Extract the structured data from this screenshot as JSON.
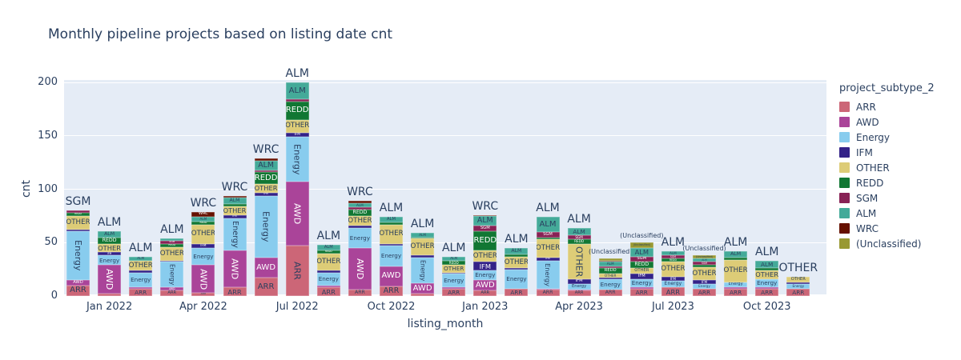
{
  "title": "Monthly pipeline projects based on listing date cnt",
  "axes": {
    "y_title": "cnt",
    "x_title": "listing_month",
    "y_ticks": [
      0,
      50,
      100,
      150,
      200
    ],
    "x_tick_indices": [
      1,
      4,
      7,
      10,
      13,
      16,
      19,
      22
    ],
    "x_tick_labels": [
      "Jan 2022",
      "Apr 2022",
      "Jul 2022",
      "Oct 2022",
      "Jan 2023",
      "Apr 2023",
      "Jul 2023",
      "Oct 2023"
    ]
  },
  "legend": {
    "title": "project_subtype_2"
  },
  "colors": {
    "plot_bg": "#e5ecf6",
    "grid": "#ffffff",
    "text": "#2a3f5f"
  },
  "chart_data": {
    "type": "bar",
    "stacked": true,
    "title": "Monthly pipeline projects based on listing date cnt",
    "xlabel": "listing_month",
    "ylabel": "cnt",
    "ylim": [
      0,
      200
    ],
    "legend_position": "right",
    "grid": true,
    "categories": [
      "Dec 2021",
      "Jan 2022",
      "Feb 2022",
      "Mar 2022",
      "Apr 2022",
      "May 2022",
      "Jun 2022",
      "Jul 2022",
      "Aug 2022",
      "Sep 2022",
      "Oct 2022",
      "Nov 2022",
      "Dec 2022",
      "Jan 2023",
      "Feb 2023",
      "Mar 2023",
      "Apr 2023",
      "May 2023",
      "Jun 2023",
      "Jul 2023",
      "Aug 2023",
      "Sep 2023",
      "Oct 2023",
      "Nov 2023"
    ],
    "series": [
      {
        "name": "ARR",
        "color": "#CC6677",
        "label_color": "#2a3f5f",
        "values": [
          10,
          2,
          7,
          5,
          3,
          8,
          17,
          47,
          8,
          6,
          9,
          2,
          7,
          5,
          7,
          6,
          5,
          6,
          7,
          8,
          7,
          7,
          7,
          7
        ]
      },
      {
        "name": "AWD",
        "color": "#AA4499",
        "label_color": "#ffffff",
        "values": [
          5,
          27,
          1,
          3,
          26,
          35,
          19,
          60,
          2,
          39,
          19,
          10,
          1,
          10,
          0,
          1,
          1,
          0,
          1,
          0,
          0,
          1,
          1,
          0
        ]
      },
      {
        "name": "Energy",
        "color": "#88CCEE",
        "label_color": "#2a3f5f",
        "values": [
          46,
          9,
          14,
          24,
          16,
          30,
          58,
          42,
          12,
          19,
          19,
          24,
          13,
          9,
          18,
          26,
          5,
          10,
          8,
          6,
          4,
          5,
          8,
          4
        ]
      },
      {
        "name": "IFM",
        "color": "#332288",
        "label_color": "#ffffff",
        "values": [
          1,
          3,
          2,
          1,
          4,
          3,
          3,
          4,
          2,
          2,
          2,
          2,
          1,
          8,
          1,
          3,
          5,
          1,
          5,
          4,
          4,
          0,
          0,
          2
        ]
      },
      {
        "name": "OTHER",
        "color": "#DDCC77",
        "label_color": "#2a3f5f",
        "values": [
          13,
          8,
          9,
          13,
          18,
          8,
          8,
          12,
          16,
          9,
          18,
          16,
          7,
          11,
          11,
          17,
          33,
          4,
          5,
          14,
          12,
          21,
          8,
          5
        ]
      },
      {
        "name": "REDD",
        "color": "#117733",
        "label_color": "#ffffff",
        "values": [
          3,
          6,
          0,
          3,
          3,
          2,
          11,
          17,
          3,
          6,
          2,
          1,
          4,
          18,
          2,
          2,
          4,
          5,
          6,
          3,
          2,
          2,
          2,
          0
        ]
      },
      {
        "name": "SGM",
        "color": "#882255",
        "label_color": "#ffffff",
        "values": [
          2,
          0,
          0,
          3,
          0,
          0,
          2,
          2,
          0,
          2,
          0,
          0,
          0,
          5,
          0,
          5,
          4,
          2,
          5,
          3,
          3,
          0,
          0,
          0
        ]
      },
      {
        "name": "ALM",
        "color": "#44AA99",
        "label_color": "#2a3f5f",
        "values": [
          0,
          6,
          4,
          2,
          4,
          6,
          9,
          16,
          5,
          4,
          5,
          4,
          4,
          9,
          6,
          14,
          7,
          4,
          8,
          4,
          3,
          6,
          7,
          0
        ]
      },
      {
        "name": "WRC",
        "color": "#661100",
        "label_color": "#ffffff",
        "values": [
          0,
          0,
          0,
          0,
          5,
          2,
          2,
          0,
          0,
          2,
          0,
          0,
          0,
          1,
          0,
          0,
          0,
          1,
          0,
          0,
          0,
          0,
          0,
          0
        ]
      },
      {
        "name": "(Unclassified)",
        "color": "#999933",
        "label_color": "#2a3f5f",
        "values": [
          0,
          0,
          0,
          0,
          0,
          0,
          0,
          0,
          0,
          0,
          0,
          0,
          0,
          0,
          0,
          0,
          0,
          2,
          5,
          0,
          3,
          0,
          0,
          0
        ]
      }
    ]
  }
}
